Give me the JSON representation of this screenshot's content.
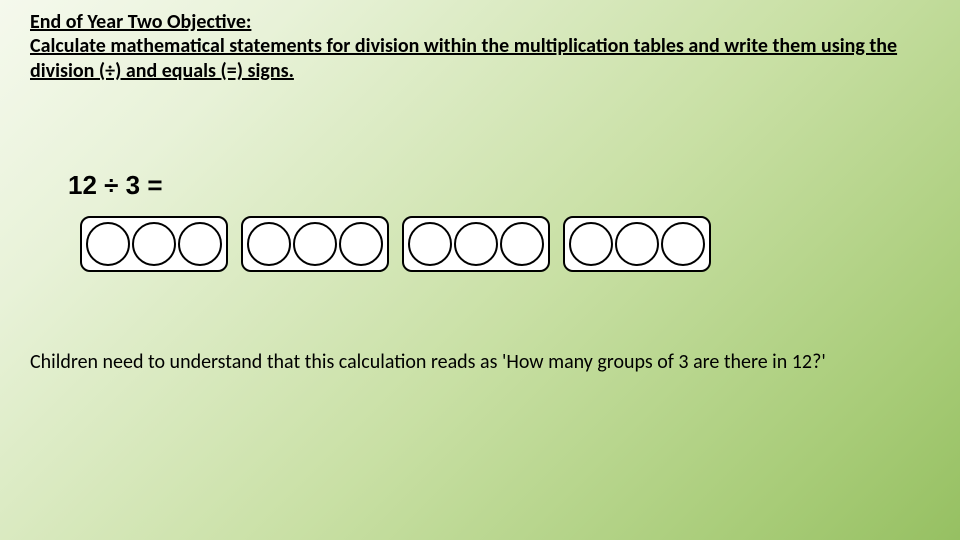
{
  "slide": {
    "background_gradient": [
      "#f5f9ed",
      "#e8f2d8",
      "#c9e0a5",
      "#a8cc78",
      "#96c062"
    ],
    "text_color": "#000000"
  },
  "objective": {
    "title": "End of Year Two Objective:",
    "body": "Calculate mathematical statements for division within the multiplication tables and write them using the division (÷) and equals (=) signs.",
    "font_size": 20,
    "font_weight": "bold",
    "underline": true
  },
  "equation": {
    "text": "12 ÷ 3 =",
    "font_size": 26,
    "font_weight": "bold"
  },
  "diagram": {
    "type": "grouped-circles",
    "group_count": 4,
    "circles_per_group": 3,
    "box_border_color": "#000000",
    "box_fill": "#ffffff",
    "box_border_radius": 10,
    "circle_diameter": 44,
    "circle_border_color": "#000000",
    "circle_fill": "#ffffff",
    "gap_between_groups": 13
  },
  "explanation": {
    "text": "Children need to understand that this calculation reads as 'How many groups of 3 are there in 12?'",
    "font_size": 20
  }
}
